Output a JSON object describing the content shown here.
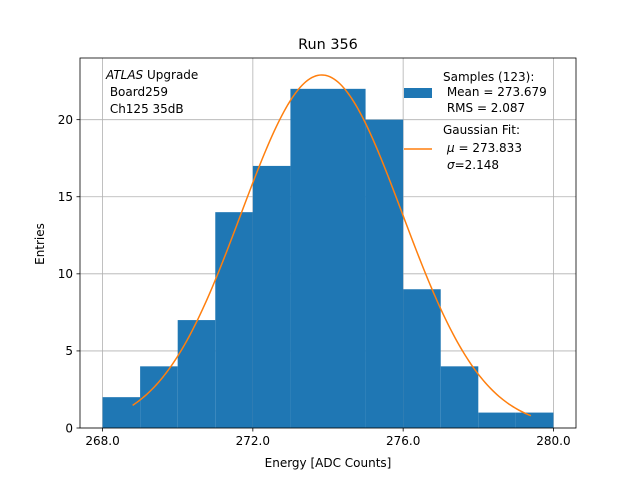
{
  "chart_data": {
    "type": "bar",
    "title": "Run 356",
    "xlabel": "Energy [ADC Counts]",
    "ylabel": "Entries",
    "xlim": [
      267.4,
      280.6
    ],
    "ylim": [
      0,
      24
    ],
    "xticks": [
      268,
      272,
      276,
      280
    ],
    "xtick_labels": [
      "268.0",
      "272.0",
      "276.0",
      "280.0"
    ],
    "yticks": [
      0,
      5,
      10,
      15,
      20
    ],
    "ytick_labels": [
      "0",
      "5",
      "10",
      "15",
      "20"
    ],
    "grid": true,
    "bins": [
      268,
      269,
      270,
      271,
      272,
      273,
      274,
      275,
      276,
      277,
      278,
      279,
      280
    ],
    "counts": [
      2,
      4,
      7,
      14,
      17,
      22,
      22,
      20,
      9,
      4,
      1,
      1
    ],
    "fit": {
      "mu": 273.833,
      "sigma": 2.148,
      "amplitude": 22.9,
      "x_range": [
        268.8,
        279.4
      ]
    },
    "annotation": {
      "italic": "ATLAS",
      "upright": " Upgrade",
      "line2": " Board259",
      "line3": " Ch125 35dB"
    },
    "legend": {
      "placement": "upper right",
      "samples": {
        "line1": "Samples (123):",
        "line2": " Mean = 273.679",
        "line3": " RMS = 2.087"
      },
      "fit": {
        "line1": "Gaussian Fit:",
        "line2_sym": "μ",
        "line2_rest": " = 273.833",
        "line3_sym": "σ",
        "line3_rest": "=2.148"
      }
    },
    "colors": {
      "bars": "#1f77b4",
      "fit": "#ff7f0e",
      "grid": "#b0b0b0",
      "axes": "#000000"
    }
  }
}
